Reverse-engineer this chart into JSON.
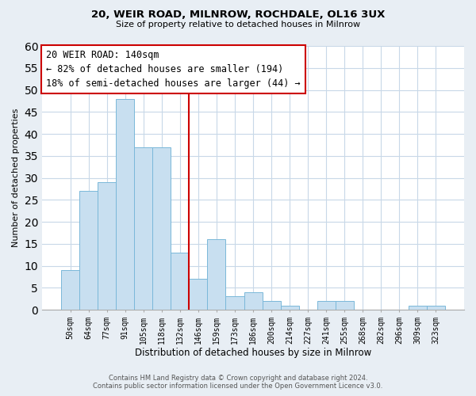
{
  "title_line1": "20, WEIR ROAD, MILNROW, ROCHDALE, OL16 3UX",
  "title_line2": "Size of property relative to detached houses in Milnrow",
  "xlabel": "Distribution of detached houses by size in Milnrow",
  "ylabel": "Number of detached properties",
  "bar_color": "#c8dff0",
  "bar_edge_color": "#7ab8d9",
  "categories": [
    "50sqm",
    "64sqm",
    "77sqm",
    "91sqm",
    "105sqm",
    "118sqm",
    "132sqm",
    "146sqm",
    "159sqm",
    "173sqm",
    "186sqm",
    "200sqm",
    "214sqm",
    "227sqm",
    "241sqm",
    "255sqm",
    "268sqm",
    "282sqm",
    "296sqm",
    "309sqm",
    "323sqm"
  ],
  "values": [
    9,
    27,
    29,
    48,
    37,
    37,
    13,
    7,
    16,
    3,
    4,
    2,
    1,
    0,
    2,
    2,
    0,
    0,
    0,
    1,
    1
  ],
  "ylim": [
    0,
    60
  ],
  "yticks": [
    0,
    5,
    10,
    15,
    20,
    25,
    30,
    35,
    40,
    45,
    50,
    55,
    60
  ],
  "annotation_title": "20 WEIR ROAD: 140sqm",
  "annotation_line1": "← 82% of detached houses are smaller (194)",
  "annotation_line2": "18% of semi-detached houses are larger (44) →",
  "vline_color": "#cc0000",
  "vline_x_index": 6.5,
  "box_edge_color": "#cc0000",
  "footer_line1": "Contains HM Land Registry data © Crown copyright and database right 2024.",
  "footer_line2": "Contains public sector information licensed under the Open Government Licence v3.0.",
  "background_color": "#e8eef4",
  "plot_background": "#ffffff",
  "grid_color": "#c8d8e8"
}
